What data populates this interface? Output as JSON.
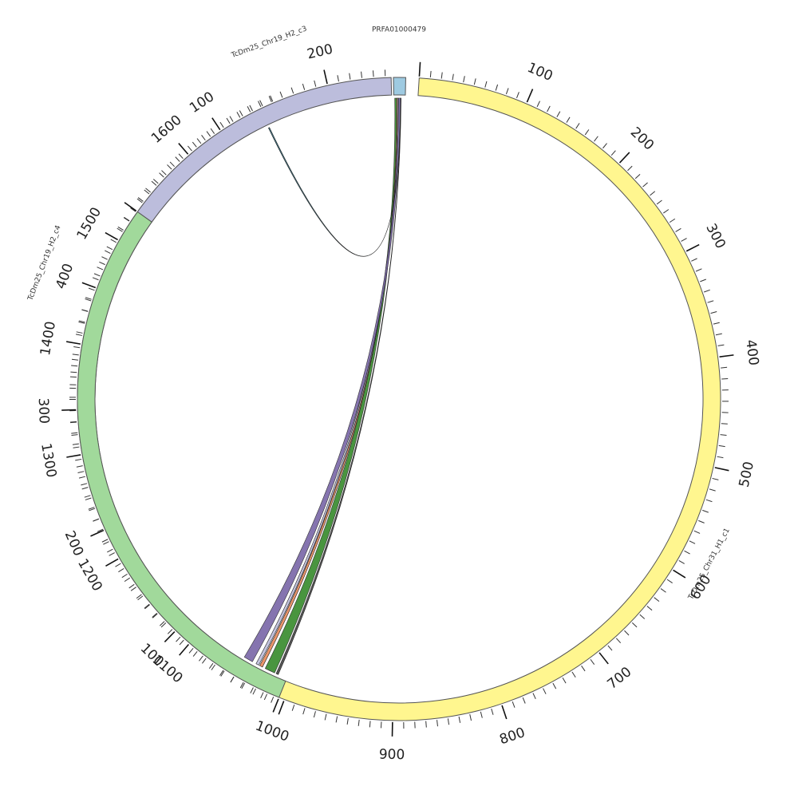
{
  "chart_data": {
    "type": "chord",
    "segments": [
      {
        "id": "PRFA01000479",
        "label": "PRFA01000479",
        "length": 12,
        "color": "#9ecae1",
        "tick_labels": []
      },
      {
        "id": "TcDm25_Chr31_H1_c1",
        "label": "TcDm25_Chr31_H1_c1",
        "length": 1690,
        "color": "#fff68f",
        "tick_labels": [
          "100",
          "200",
          "300",
          "400",
          "500",
          "600",
          "700",
          "800",
          "900",
          "1000",
          "1100",
          "1200",
          "1300",
          "1400",
          "1500",
          "1600"
        ]
      },
      {
        "id": "TcDm25_Chr19_H2_c4",
        "label": "TcDm25_Chr19_H2_c4",
        "length": 470,
        "color": "#a1d99b",
        "tick_labels": [
          "100",
          "200",
          "300",
          "400"
        ]
      },
      {
        "id": "TcDm25_Chr19_H2_c3",
        "label": "TcDm25_Chr19_H2_c3",
        "length": 255,
        "color": "#bcbddc",
        "tick_labels": [
          "100",
          "200"
        ]
      }
    ],
    "links": [
      {
        "from": "PRFA01000479",
        "from_range": [
          1,
          3
        ],
        "to": "TcDm25_Chr31_H1_c1",
        "to_range": [
          1018,
          1028
        ],
        "color": "#3a8c2f"
      },
      {
        "from": "PRFA01000479",
        "from_range": [
          3,
          4
        ],
        "to": "TcDm25_Chr31_H1_c1",
        "to_range": [
          1031,
          1034
        ],
        "color": "#e8895a"
      },
      {
        "from": "PRFA01000479",
        "from_range": [
          4,
          5
        ],
        "to": "TcDm25_Chr31_H1_c1",
        "to_range": [
          1035,
          1038
        ],
        "color": "#bcbddc"
      },
      {
        "from": "PRFA01000479",
        "from_range": [
          5,
          7
        ],
        "to": "TcDm25_Chr31_H1_c1",
        "to_range": [
          1042,
          1051
        ],
        "color": "#7b68a8"
      },
      {
        "from": "PRFA01000479",
        "from_range": [
          7,
          7.3
        ],
        "to": "TcDm25_Chr19_H2_c3",
        "to_range": [
          138,
          139
        ],
        "color": "#2c6b7f"
      },
      {
        "from": "PRFA01000479",
        "from_range": [
          7.3,
          7.6
        ],
        "to": "TcDm25_Chr19_H2_c4",
        "to_range": [
          8,
          10
        ],
        "color": "#444444"
      }
    ]
  }
}
